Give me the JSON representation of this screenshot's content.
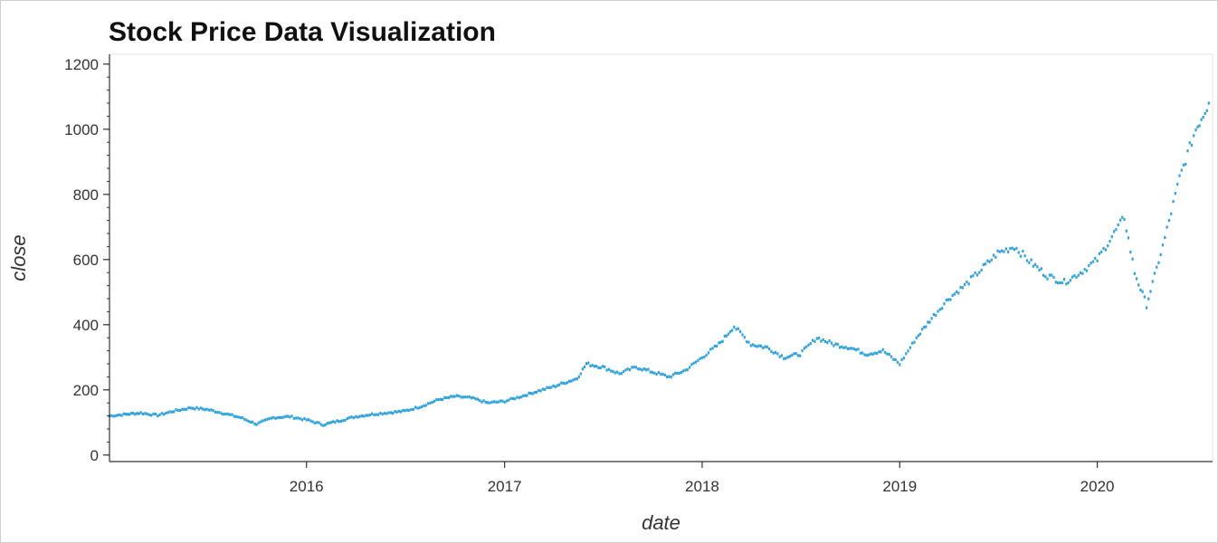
{
  "chart_data": {
    "type": "scatter",
    "title": "Stock Price Data Visualization",
    "xlabel": "date",
    "ylabel": "close",
    "x_type": "date",
    "xlim": [
      "2015-01-02",
      "2020-08-01"
    ],
    "ylim": [
      -20,
      1230
    ],
    "x_ticks": [
      {
        "value": "2016-01-01",
        "label": "2016"
      },
      {
        "value": "2017-01-01",
        "label": "2017"
      },
      {
        "value": "2018-01-01",
        "label": "2018"
      },
      {
        "value": "2019-01-01",
        "label": "2019"
      },
      {
        "value": "2020-01-01",
        "label": "2020"
      }
    ],
    "y_ticks": [
      0,
      200,
      400,
      600,
      800,
      1000,
      1200
    ],
    "grid": false,
    "color": "#30a2da",
    "series": [
      {
        "points": [
          [
            "2015-01-02",
            120
          ],
          [
            "2015-02-01",
            125
          ],
          [
            "2015-03-01",
            129
          ],
          [
            "2015-04-01",
            122
          ],
          [
            "2015-05-01",
            135
          ],
          [
            "2015-06-01",
            145
          ],
          [
            "2015-07-01",
            140
          ],
          [
            "2015-08-01",
            128
          ],
          [
            "2015-09-01",
            115
          ],
          [
            "2015-10-01",
            95
          ],
          [
            "2015-11-01",
            115
          ],
          [
            "2015-12-01",
            118
          ],
          [
            "2016-01-01",
            108
          ],
          [
            "2016-02-01",
            93
          ],
          [
            "2016-03-01",
            105
          ],
          [
            "2016-04-01",
            118
          ],
          [
            "2016-05-01",
            125
          ],
          [
            "2016-06-01",
            130
          ],
          [
            "2016-07-01",
            135
          ],
          [
            "2016-08-01",
            150
          ],
          [
            "2016-09-01",
            170
          ],
          [
            "2016-10-01",
            180
          ],
          [
            "2016-11-01",
            175
          ],
          [
            "2016-12-01",
            160
          ],
          [
            "2017-01-01",
            165
          ],
          [
            "2017-02-01",
            180
          ],
          [
            "2017-03-01",
            195
          ],
          [
            "2017-04-01",
            210
          ],
          [
            "2017-05-15",
            235
          ],
          [
            "2017-06-01",
            280
          ],
          [
            "2017-07-01",
            270
          ],
          [
            "2017-08-01",
            250
          ],
          [
            "2017-09-01",
            270
          ],
          [
            "2017-10-01",
            255
          ],
          [
            "2017-11-01",
            240
          ],
          [
            "2017-12-01",
            260
          ],
          [
            "2018-01-01",
            300
          ],
          [
            "2018-02-01",
            340
          ],
          [
            "2018-03-01",
            395
          ],
          [
            "2018-04-01",
            340
          ],
          [
            "2018-05-01",
            330
          ],
          [
            "2018-06-01",
            300
          ],
          [
            "2018-07-01",
            310
          ],
          [
            "2018-08-01",
            360
          ],
          [
            "2018-09-01",
            340
          ],
          [
            "2018-10-01",
            330
          ],
          [
            "2018-11-01",
            310
          ],
          [
            "2018-12-01",
            320
          ],
          [
            "2019-01-01",
            280
          ],
          [
            "2019-02-01",
            360
          ],
          [
            "2019-03-01",
            420
          ],
          [
            "2019-04-01",
            480
          ],
          [
            "2019-05-01",
            520
          ],
          [
            "2019-06-01",
            570
          ],
          [
            "2019-07-01",
            620
          ],
          [
            "2019-08-01",
            640
          ],
          [
            "2019-09-01",
            590
          ],
          [
            "2019-10-01",
            550
          ],
          [
            "2019-11-01",
            530
          ],
          [
            "2019-12-01",
            560
          ],
          [
            "2020-01-01",
            600
          ],
          [
            "2020-02-01",
            680
          ],
          [
            "2020-02-20",
            730
          ],
          [
            "2020-03-10",
            560
          ],
          [
            "2020-04-01",
            460
          ],
          [
            "2020-05-01",
            640
          ],
          [
            "2020-06-01",
            850
          ],
          [
            "2020-07-01",
            1000
          ],
          [
            "2020-07-25",
            1080
          ]
        ]
      }
    ]
  }
}
